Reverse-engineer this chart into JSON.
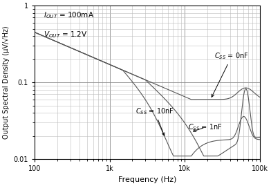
{
  "xlabel": "Frequency (Hz)",
  "ylabel": "Output Spectral Density (μV/√Hz)",
  "xlim": [
    100,
    100000
  ],
  "ylim": [
    0.01,
    1
  ],
  "ann_iout": "I$_{OUT}$ = 100mA",
  "ann_vout": "V$_{OUT}$ = 1.2V",
  "label_css0": "C$_{SS}$ = 0nF",
  "label_css1": "C$_{SS}$ = 1nF",
  "label_css10": "C$_{SS}$ = 10nF",
  "line_color": "#555555",
  "grid_major_color": "#888888",
  "grid_minor_color": "#bbbbbb"
}
